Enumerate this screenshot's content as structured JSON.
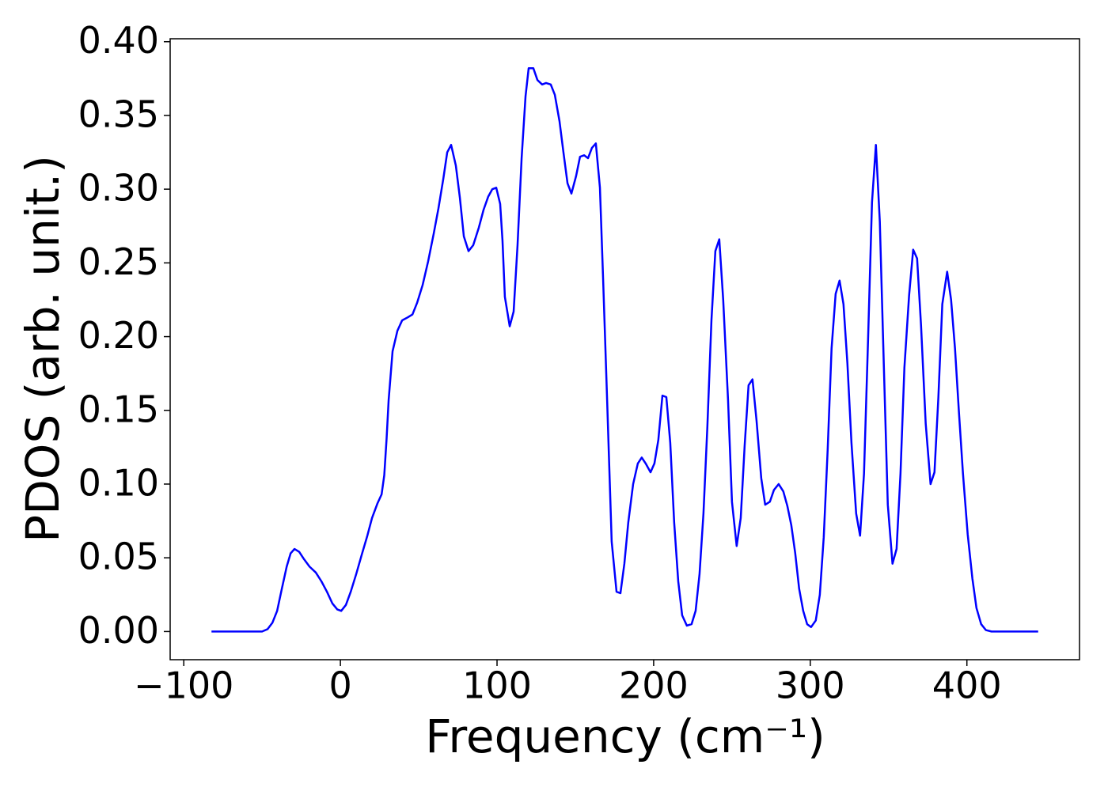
{
  "chart_data": {
    "type": "line",
    "xlabel": "Frequency (cm⁻¹)",
    "ylabel": "PDOS (arb. unit.)",
    "xlim": [
      -108.7,
      471.9
    ],
    "ylim": [
      -0.0191,
      0.402
    ],
    "xticks": [
      {
        "value": -100,
        "label": "−100"
      },
      0,
      100,
      200,
      300,
      400
    ],
    "yticks": [
      {
        "value": 0,
        "label": "0.00"
      },
      {
        "value": 0.05,
        "label": "0.05"
      },
      {
        "value": 0.1,
        "label": "0.10"
      },
      {
        "value": 0.15,
        "label": "0.15"
      },
      {
        "value": 0.2,
        "label": "0.20"
      },
      {
        "value": 0.25,
        "label": "0.25"
      },
      {
        "value": 0.3,
        "label": "0.30"
      },
      {
        "value": 0.35,
        "label": "0.35"
      },
      {
        "value": 0.4,
        "label": "0.40"
      }
    ],
    "grid": false,
    "x": [
      -82.3,
      -50,
      -46.5,
      -43.4,
      -40.4,
      -37.4,
      -34.3,
      -31.8,
      -29.3,
      -26.3,
      -23.2,
      -19.7,
      -15.7,
      -12.1,
      -8.6,
      -5.1,
      -2.0,
      0.5,
      3.5,
      6.6,
      10.1,
      13.6,
      17.2,
      20.2,
      23.7,
      26.3,
      28.0,
      29.5,
      30.8,
      33.3,
      36.4,
      39.4,
      42.9,
      46,
      49,
      52.5,
      56,
      59.6,
      62.6,
      65.7,
      68.2,
      70.7,
      73.7,
      76.3,
      78.8,
      81.8,
      84.8,
      88.4,
      91.4,
      94.4,
      97,
      99.5,
      102,
      103.5,
      105,
      108.1,
      110.6,
      113.1,
      115.7,
      118.2,
      120.2,
      123.2,
      125.8,
      128.8,
      131.3,
      134.3,
      136.9,
      139.9,
      142.4,
      145,
      147.5,
      150.5,
      153,
      155.6,
      158.1,
      160.6,
      163.1,
      165.7,
      167.7,
      170.2,
      173.2,
      176.3,
      178.8,
      181.3,
      183.8,
      186.9,
      189.9,
      192.4,
      194.9,
      198,
      200.5,
      203,
      205.6,
      208.1,
      210.6,
      213.1,
      215.7,
      218.2,
      221.2,
      224.2,
      226.8,
      229.3,
      231.8,
      234.3,
      236.9,
      239.4,
      241.9,
      244.4,
      247.5,
      250,
      253,
      255.6,
      258.1,
      260.6,
      263.1,
      265.7,
      268.7,
      271.2,
      274.2,
      276.8,
      279.8,
      282.8,
      285.4,
      287.9,
      290.4,
      292.9,
      295.5,
      298,
      300.5,
      303.5,
      306.1,
      308.6,
      311.1,
      313.6,
      316.2,
      318.7,
      321.2,
      323.7,
      326.3,
      329.3,
      331.8,
      334.3,
      336.9,
      339.4,
      341.9,
      344.4,
      347,
      349.5,
      352.5,
      355.1,
      357.6,
      360.1,
      363.1,
      365.7,
      368.2,
      370.7,
      373.7,
      376.8,
      379.3,
      381.8,
      384.3,
      387.4,
      389.9,
      392.4,
      394.9,
      397.5,
      400.5,
      403.5,
      406.1,
      409.1,
      412.1,
      415.7,
      445.5
    ],
    "series": [
      {
        "name": "PDOS",
        "color": "#0000ff",
        "values": [
          0,
          0,
          0.0016,
          0.006,
          0.014,
          0.029,
          0.044,
          0.053,
          0.056,
          0.054,
          0.049,
          0.044,
          0.04,
          0.034,
          0.027,
          0.019,
          0.015,
          0.014,
          0.018,
          0.027,
          0.039,
          0.052,
          0.065,
          0.077,
          0.087,
          0.093,
          0.106,
          0.131,
          0.157,
          0.19,
          0.204,
          0.211,
          0.213,
          0.215,
          0.223,
          0.235,
          0.251,
          0.27,
          0.287,
          0.307,
          0.325,
          0.33,
          0.316,
          0.294,
          0.268,
          0.258,
          0.262,
          0.274,
          0.286,
          0.295,
          0.3,
          0.301,
          0.29,
          0.265,
          0.227,
          0.207,
          0.217,
          0.262,
          0.321,
          0.363,
          0.382,
          0.382,
          0.374,
          0.371,
          0.372,
          0.371,
          0.364,
          0.346,
          0.325,
          0.304,
          0.297,
          0.309,
          0.322,
          0.323,
          0.321,
          0.328,
          0.331,
          0.301,
          0.24,
          0.16,
          0.061,
          0.027,
          0.026,
          0.046,
          0.074,
          0.1,
          0.114,
          0.118,
          0.114,
          0.108,
          0.114,
          0.13,
          0.16,
          0.159,
          0.128,
          0.074,
          0.034,
          0.011,
          0.004,
          0.005,
          0.014,
          0.039,
          0.08,
          0.139,
          0.211,
          0.258,
          0.266,
          0.225,
          0.157,
          0.088,
          0.058,
          0.077,
          0.126,
          0.167,
          0.171,
          0.143,
          0.104,
          0.086,
          0.088,
          0.096,
          0.1,
          0.095,
          0.085,
          0.072,
          0.053,
          0.029,
          0.014,
          0.005,
          0.003,
          0.0075,
          0.025,
          0.064,
          0.123,
          0.192,
          0.229,
          0.238,
          0.222,
          0.182,
          0.128,
          0.08,
          0.065,
          0.107,
          0.198,
          0.291,
          0.33,
          0.278,
          0.179,
          0.086,
          0.046,
          0.056,
          0.107,
          0.179,
          0.228,
          0.259,
          0.253,
          0.208,
          0.141,
          0.1,
          0.108,
          0.159,
          0.222,
          0.244,
          0.225,
          0.192,
          0.149,
          0.107,
          0.066,
          0.036,
          0.016,
          0.005,
          0.001,
          0,
          0
        ]
      }
    ]
  }
}
